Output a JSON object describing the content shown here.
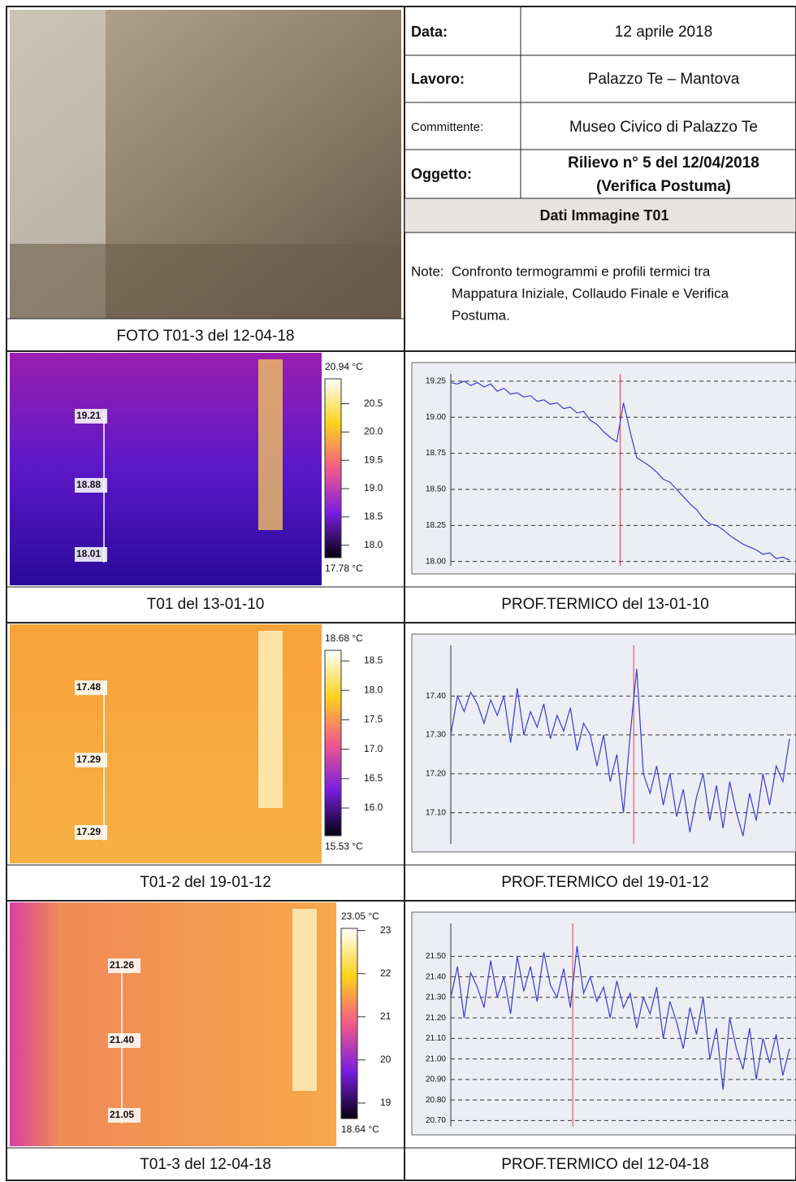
{
  "header": {
    "data_label": "Data:",
    "data_value": "12 aprile 2018",
    "lavoro_label": "Lavoro:",
    "lavoro_value": "Palazzo Te – Mantova",
    "committente_label": "Committente:",
    "committente_value": "Museo Civico di Palazzo Te",
    "oggetto_label": "Oggetto:",
    "oggetto_value_1": "Rilievo n° 5 del 12/04/2018",
    "oggetto_value_2": "(Verifica Postuma)",
    "section": "Dati Immagine T01"
  },
  "note": {
    "label": "Note:",
    "lines": [
      "Confronto termogrammi e profili termici tra",
      "Mappatura Iniziale, Collaudo Finale e Verifica",
      "Postuma."
    ]
  },
  "photo_caption": "FOTO T01-3 del 12-04-18",
  "rows": [
    {
      "thermal": {
        "caption": "T01 del 13-01-10",
        "max_label": "20.94 °C",
        "min_label": "17.78 °C",
        "scale_lim": [
          17.78,
          20.94
        ],
        "scale_ticks": [
          20.5,
          {
            "value": 20,
            "label": "20.0"
          },
          19.5,
          {
            "value": 19,
            "label": "19.0"
          },
          18.5,
          {
            "value": 18,
            "label": "18.0"
          }
        ],
        "spots": [
          "19.21",
          "18.88",
          "18.01"
        ]
      },
      "profile": {
        "caption": "PROF.TERMICO del 13-01-10",
        "color": "#3b3bd0",
        "ylim": [
          17.97,
          19.3
        ],
        "yticks": [
          19.25,
          {
            "value": 19,
            "label": "19.00"
          },
          18.75,
          {
            "value": 18.5,
            "label": "18.50"
          },
          18.25,
          {
            "value": 18,
            "label": "18.00"
          }
        ],
        "values": [
          19.24,
          19.23,
          19.25,
          19.22,
          19.24,
          19.21,
          19.23,
          19.18,
          19.2,
          19.16,
          19.17,
          19.14,
          19.15,
          19.11,
          19.12,
          19.09,
          19.1,
          19.06,
          19.07,
          19.03,
          19.04,
          18.98,
          18.95,
          18.9,
          18.86,
          18.83,
          19.1,
          18.9,
          18.72,
          18.69,
          18.66,
          18.62,
          18.57,
          18.55,
          18.5,
          18.45,
          18.4,
          18.36,
          18.3,
          18.26,
          18.25,
          18.22,
          18.18,
          18.15,
          18.12,
          18.1,
          18.08,
          18.05,
          18.06,
          18.02,
          18.03,
          18.01
        ]
      }
    },
    {
      "thermal": {
        "caption": "T01-2 del 19-01-12",
        "max_label": "18.68 °C",
        "min_label": "15.53 °C",
        "scale_lim": [
          15.53,
          18.68
        ],
        "scale_ticks": [
          18.5,
          {
            "value": 18,
            "label": "18.0"
          },
          17.5,
          {
            "value": 17,
            "label": "17.0"
          },
          16.5,
          {
            "value": 16,
            "label": "16.0"
          }
        ],
        "spots": [
          "17.48",
          "17.29",
          "17.29"
        ]
      },
      "profile": {
        "caption": "PROF.TERMICO del 19-01-12",
        "color": "#3b3bd0",
        "ylim": [
          17.02,
          17.53
        ],
        "yticks": [
          {
            "value": 17.4,
            "label": "17.40"
          },
          {
            "value": 17.3,
            "label": "17.30"
          },
          {
            "value": 17.2,
            "label": "17.20"
          },
          {
            "value": 17.1,
            "label": "17.10"
          }
        ],
        "values": [
          17.3,
          17.4,
          17.36,
          17.41,
          17.38,
          17.33,
          17.39,
          17.35,
          17.4,
          17.28,
          17.42,
          17.3,
          17.36,
          17.32,
          17.38,
          17.29,
          17.35,
          17.31,
          17.37,
          17.26,
          17.33,
          17.3,
          17.22,
          17.3,
          17.18,
          17.25,
          17.1,
          17.3,
          17.47,
          17.2,
          17.15,
          17.22,
          17.12,
          17.2,
          17.09,
          17.16,
          17.05,
          17.14,
          17.2,
          17.08,
          17.17,
          17.06,
          17.18,
          17.1,
          17.04,
          17.15,
          17.08,
          17.2,
          17.12,
          17.22,
          17.18,
          17.29
        ]
      }
    },
    {
      "thermal": {
        "caption": "T01-3 del 12-04-18",
        "max_label": "23.05 °C",
        "min_label": "18.64 °C",
        "scale_lim": [
          18.64,
          23.05
        ],
        "scale_ticks": [
          23,
          22,
          21,
          20,
          19
        ],
        "spots": [
          "21.26",
          "21.40",
          "21.05"
        ]
      },
      "profile": {
        "caption": "PROF.TERMICO del 12-04-18",
        "color": "#3b3bd0",
        "ylim": [
          20.67,
          21.66
        ],
        "yticks": [
          {
            "value": 21.5,
            "label": "21.50"
          },
          {
            "value": 21.4,
            "label": "21.40"
          },
          {
            "value": 21.3,
            "label": "21.30"
          },
          {
            "value": 21.2,
            "label": "21.20"
          },
          {
            "value": 21.1,
            "label": "21.10"
          },
          {
            "value": 21,
            "label": "21.00"
          },
          {
            "value": 20.9,
            "label": "20.90"
          },
          {
            "value": 20.8,
            "label": "20.80"
          },
          {
            "value": 20.7,
            "label": "20.70"
          }
        ],
        "values": [
          21.3,
          21.45,
          21.2,
          21.42,
          21.35,
          21.25,
          21.48,
          21.3,
          21.4,
          21.22,
          21.5,
          21.33,
          21.45,
          21.28,
          21.52,
          21.36,
          21.3,
          21.44,
          21.25,
          21.55,
          21.32,
          21.4,
          21.28,
          21.35,
          21.2,
          21.38,
          21.25,
          21.32,
          21.15,
          21.3,
          21.22,
          21.35,
          21.1,
          21.28,
          21.18,
          21.05,
          21.25,
          21.12,
          21.3,
          21.0,
          21.15,
          20.85,
          21.2,
          21.05,
          20.95,
          21.15,
          20.9,
          21.1,
          20.98,
          21.12,
          20.92,
          21.05
        ]
      }
    }
  ]
}
